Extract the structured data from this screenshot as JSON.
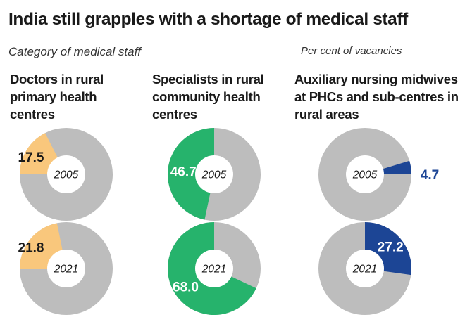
{
  "title": "India still grapples with a shortage of medical staff",
  "subtitle_left": "Category of medical staff",
  "subtitle_right": "Per cent of vacancies",
  "colors": {
    "remainder": "#bdbdbd",
    "orange": "#f9c77c",
    "green": "#26b36c",
    "blue": "#1c4595",
    "center": "#ffffff"
  },
  "chart_data": {
    "type": "pie",
    "unit": "Per cent of vacancies",
    "years": [
      "2005",
      "2021"
    ],
    "categories": [
      "Doctors in rural primary health centres",
      "Specialists in rural community health centres",
      "Auxiliary nursing midwives at PHCs and sub-centres in rural areas"
    ],
    "charts": [
      {
        "category": "Doctors in rural primary health centres",
        "year": "2005",
        "value": 17.5,
        "value_text": "17.5",
        "color": "orange"
      },
      {
        "category": "Doctors in rural primary health centres",
        "year": "2021",
        "value": 21.8,
        "value_text": "21.8",
        "color": "orange"
      },
      {
        "category": "Specialists in rural community health centres",
        "year": "2005",
        "value": 46.7,
        "value_text": "46.7",
        "color": "green"
      },
      {
        "category": "Specialists in rural community health centres",
        "year": "2021",
        "value": 68.0,
        "value_text": "68.0",
        "color": "green"
      },
      {
        "category": "Auxiliary nursing midwives at PHCs and sub-centres in rural areas",
        "year": "2005",
        "value": 4.7,
        "value_text": "4.7",
        "color": "blue"
      },
      {
        "category": "Auxiliary nursing midwives at PHCs and sub-centres in rural areas",
        "year": "2021",
        "value": 27.2,
        "value_text": "27.2",
        "color": "blue"
      }
    ]
  },
  "category_lines": [
    [
      "Doctors in rural",
      "primary health",
      "centres"
    ],
    [
      "Specialists in rural",
      "community health",
      "centres"
    ],
    [
      "Auxiliary nursing midwives",
      "at PHCs and sub-centres in",
      "rural areas"
    ]
  ]
}
